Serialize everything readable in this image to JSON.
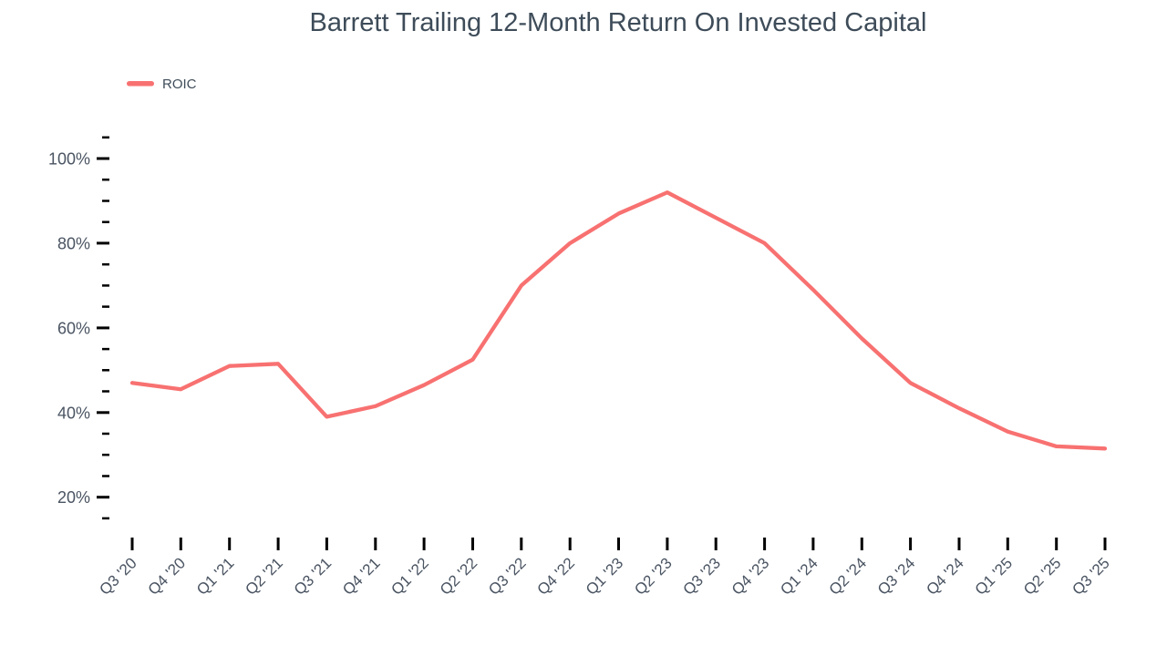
{
  "chart_data": {
    "type": "line",
    "title": "Barrett Trailing 12-Month Return On Invested Capital",
    "legend": [
      {
        "name": "ROIC",
        "color": "#F87171"
      }
    ],
    "legend_position": "top-left",
    "categories": [
      "Q3 '20",
      "Q4 '20",
      "Q1 '21",
      "Q2 '21",
      "Q3 '21",
      "Q4 '21",
      "Q1 '22",
      "Q2 '22",
      "Q3 '22",
      "Q4 '22",
      "Q1 '23",
      "Q2 '23",
      "Q3 '23",
      "Q4 '23",
      "Q1 '24",
      "Q2 '24",
      "Q3 '24",
      "Q4 '24",
      "Q1 '25",
      "Q2 '25",
      "Q3 '25"
    ],
    "series": [
      {
        "name": "ROIC",
        "color": "#F87171",
        "values": [
          47,
          45.5,
          51,
          51.5,
          39,
          41.5,
          46.5,
          52.5,
          70,
          80,
          87,
          92,
          86,
          80,
          69,
          57.5,
          47,
          41,
          35.5,
          32,
          31.5
        ]
      }
    ],
    "xlabel": "",
    "ylabel": "",
    "ylim": [
      15,
      105
    ],
    "y_major_ticks": [
      100,
      80,
      60,
      40,
      20
    ],
    "y_tick_labels": [
      "100%",
      "80%",
      "60%",
      "40%",
      "20%"
    ],
    "y_minor_step": 5,
    "grid": false
  },
  "colors": {
    "line": "#F87171",
    "title_text": "#3E4C59",
    "axis_text": "#4A5462",
    "tick": "#000000",
    "background": "#FFFFFF"
  }
}
